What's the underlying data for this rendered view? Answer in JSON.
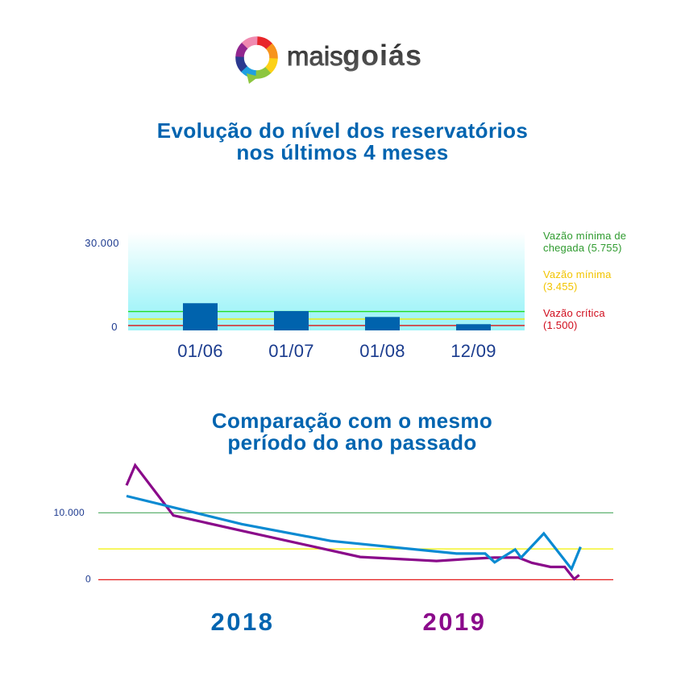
{
  "logo": {
    "icon": "speech-bubble-ring-icon",
    "text_light": "mais",
    "text_bold": "goiás",
    "ring_colors": [
      "#f08ab0",
      "#e8262a",
      "#f7941d",
      "#fcd116",
      "#8cc63f",
      "#1fa0e0",
      "#2b3990",
      "#92278f"
    ]
  },
  "colors": {
    "title": "#0064b0",
    "axis_text": "#1d3a8f"
  },
  "chart_data": [
    {
      "type": "bar",
      "title": "Evolução do nível dos reservatórios nos últimos 4 meses",
      "title_lines": [
        "Evolução do nível dos reservatórios",
        "nos últimos 4 meses"
      ],
      "categories": [
        "01/06",
        "01/07",
        "01/08",
        "12/09"
      ],
      "values": [
        8300,
        5900,
        4100,
        1900
      ],
      "xlabel": "",
      "ylabel": "",
      "ylim": [
        0,
        30000
      ],
      "yticks": [
        {
          "value": 0,
          "label": "0"
        },
        {
          "value": 30000,
          "label": "30.000"
        }
      ],
      "grid": false,
      "bar_color": "#0063ad",
      "background_gradient": [
        "#ffffff",
        "#9ef3f8"
      ],
      "legend_position": "right",
      "reference_lines": [
        {
          "key": "vazao-minima-chegada",
          "name": "Vazão mínima de chegada",
          "value": 5755,
          "label_lines": [
            "Vazão mínima de",
            "chegada (5.755)"
          ],
          "line_color": "#22dd22",
          "text_color": "#2f9b2f"
        },
        {
          "key": "vazao-minima",
          "name": "Vazão mínima",
          "value": 3455,
          "label_lines": [
            "Vazão mínima",
            "(3.455)"
          ],
          "line_color": "#eeee00",
          "text_color": "#f2c400"
        },
        {
          "key": "vazao-critica",
          "name": "Vazão crítica",
          "value": 1500,
          "label_lines": [
            "Vazão crítica",
            "(1.500)"
          ],
          "line_color": "#dd1111",
          "text_color": "#d00c1c"
        }
      ]
    },
    {
      "type": "line",
      "title": "Comparação com o mesmo período do ano passado",
      "title_lines": [
        "Comparação com o mesmo",
        "período do ano passado"
      ],
      "xlabel": "",
      "ylabel": "",
      "xlim": [
        0,
        100
      ],
      "yticks": [
        {
          "value": 0,
          "label": "0"
        },
        {
          "value": 10000,
          "label": "10.000"
        }
      ],
      "grid": false,
      "legend_position": "bottom",
      "reference_lines": [
        {
          "key": "green",
          "value": 10000,
          "line_color": "#4caa60"
        },
        {
          "key": "yellow",
          "value": 4600,
          "line_color": "#f2f200"
        },
        {
          "key": "red",
          "value": 0,
          "line_color": "#e00000"
        }
      ],
      "series": [
        {
          "name": "2018",
          "line_color": "#0a8ad2",
          "label_color": "#0064b0",
          "x": [
            0,
            25.4,
            44.9,
            72.6,
            78.9,
            81.0,
            85.5,
            86.8,
            91.8,
            97.9,
            99.9
          ],
          "values": [
            12500,
            8300,
            5800,
            3900,
            3900,
            2600,
            4500,
            3300,
            6900,
            1600,
            4900
          ]
        },
        {
          "name": "2019",
          "line_color": "#8a0a8a",
          "label_color": "#8b0a8b",
          "x": [
            0,
            1.9,
            10.3,
            25.4,
            51.4,
            68.2,
            75.0,
            80.9,
            86.2,
            89.2,
            93.3,
            96.4,
            98.5,
            99.6
          ],
          "values": [
            14100,
            17100,
            9600,
            7300,
            3400,
            2800,
            3100,
            3300,
            3300,
            2500,
            1900,
            1900,
            100,
            700
          ]
        }
      ]
    }
  ]
}
